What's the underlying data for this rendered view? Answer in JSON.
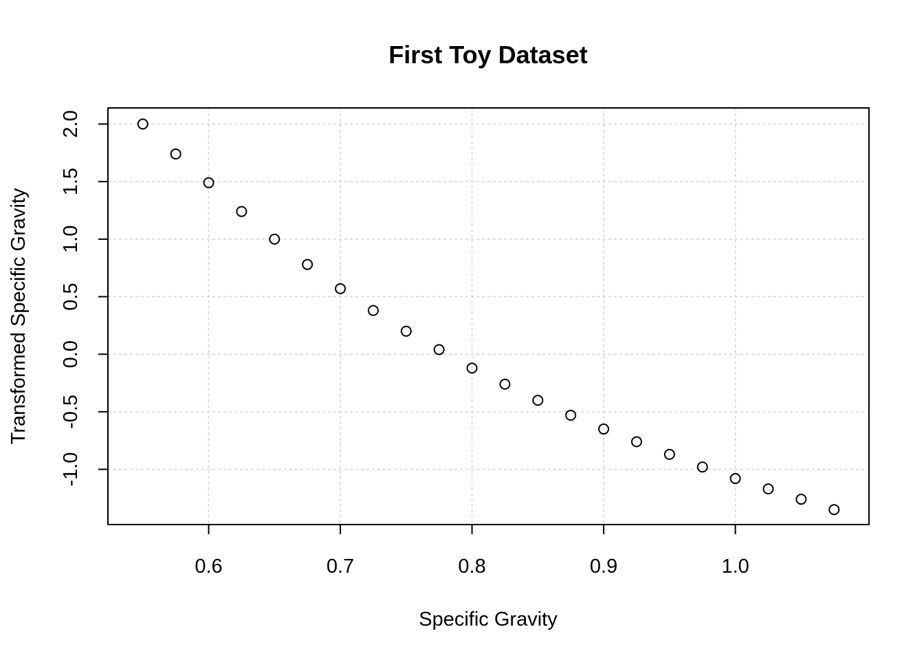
{
  "chart_data": {
    "type": "scatter",
    "title": "First Toy Dataset",
    "xlabel": "Specific Gravity",
    "ylabel": "Transformed Specific Gravity",
    "xlim": [
      0.5235,
      1.1015
    ],
    "ylim": [
      -1.48,
      2.14
    ],
    "x_ticks": [
      0.6,
      0.7,
      0.8,
      0.9,
      1.0
    ],
    "x_tick_labels": [
      "0.6",
      "0.7",
      "0.8",
      "0.9",
      "1.0"
    ],
    "y_ticks": [
      -1.0,
      -0.5,
      0.0,
      0.5,
      1.0,
      1.5,
      2.0
    ],
    "y_tick_labels": [
      "-1.0",
      "-0.5",
      "0.0",
      "0.5",
      "1.0",
      "1.5",
      "2.0"
    ],
    "grid": true,
    "marker": "open-circle",
    "x": [
      0.55,
      0.575,
      0.6,
      0.625,
      0.65,
      0.675,
      0.7,
      0.725,
      0.75,
      0.775,
      0.8,
      0.825,
      0.85,
      0.875,
      0.9,
      0.925,
      0.95,
      0.975,
      1.0,
      1.025,
      1.05,
      1.075
    ],
    "y": [
      2.0,
      1.74,
      1.49,
      1.24,
      1.0,
      0.78,
      0.57,
      0.38,
      0.2,
      0.04,
      -0.12,
      -0.26,
      -0.4,
      -0.53,
      -0.65,
      -0.76,
      -0.87,
      -0.98,
      -1.08,
      -1.17,
      -1.26,
      -1.35
    ]
  }
}
